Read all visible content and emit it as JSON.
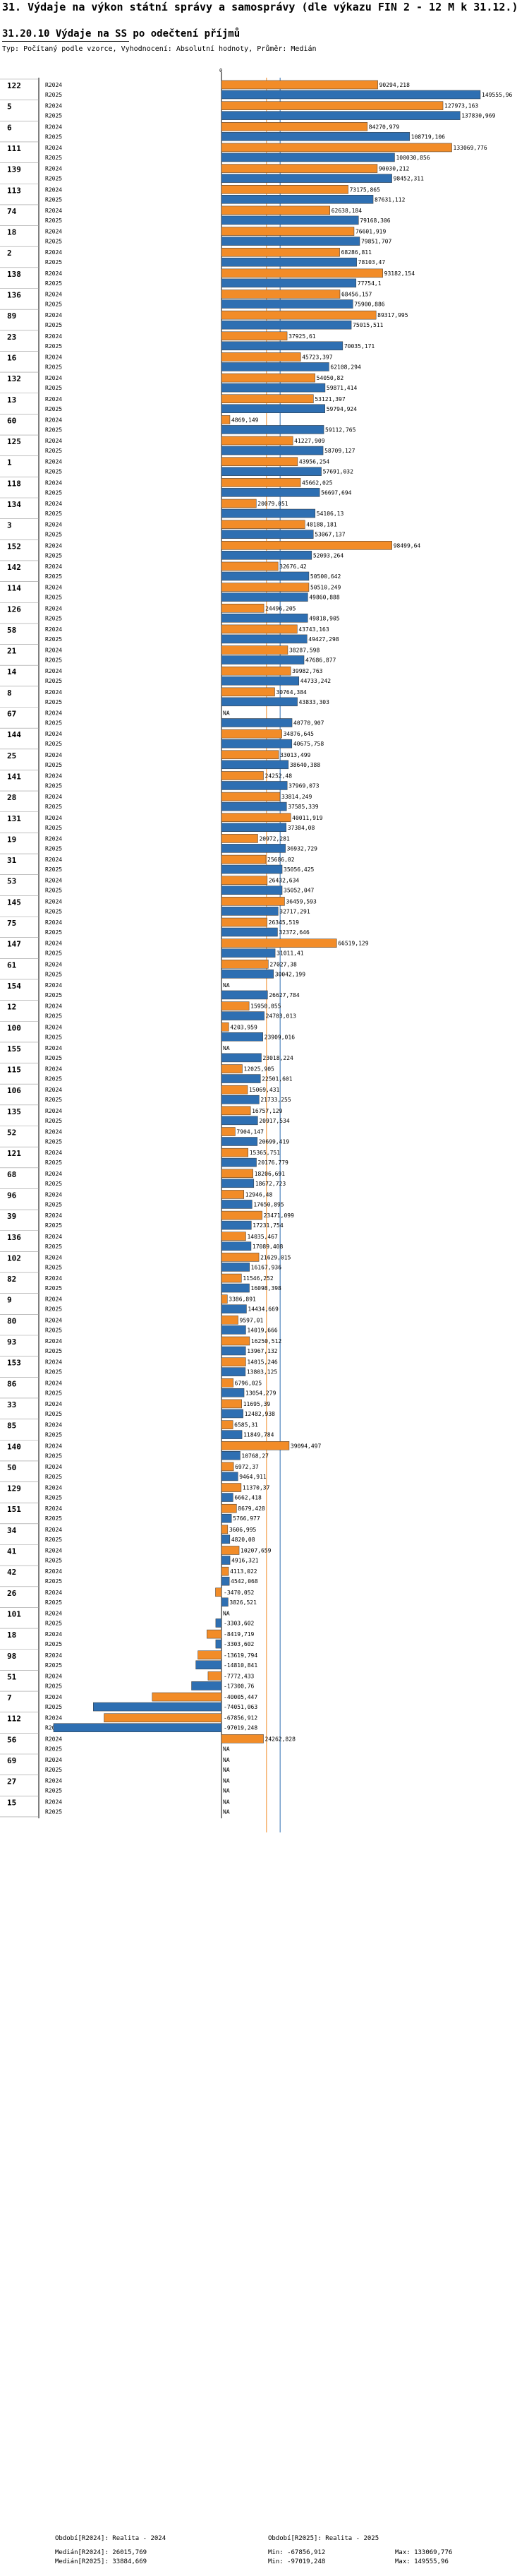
{
  "header": {
    "title": "31. Výdaje na výkon státní správy a samosprávy (dle výkazu FIN 2 - 12 M k 31.12.)",
    "subtitle": "31.20.10 Výdaje na SS po odečtení příjmů",
    "note": "Typ: Počítaný podle vzorce, Vyhodnocení: Absolutní hodnoty, Průměr: Medián"
  },
  "chart_data": {
    "type": "bar",
    "orientation": "horizontal",
    "series": [
      {
        "name": "R2024",
        "color": "#f28c28"
      },
      {
        "name": "R2025",
        "color": "#2e6fb2"
      }
    ],
    "xlim": [
      -110000,
      155000
    ],
    "median_lines": [
      {
        "name": "Medián[R2024]",
        "value": 26015.769,
        "color": "#f28c28"
      },
      {
        "name": "Medián[R2025]",
        "value": 33884.669,
        "color": "#2e6fb2"
      }
    ],
    "categories": [
      {
        "id": "122",
        "R2024": 90294.218,
        "R2024_label": "90294,218",
        "R2025": 149555.96,
        "R2025_label": "149555,96"
      },
      {
        "id": "5",
        "R2024": 127973.163,
        "R2024_label": "127973,163",
        "R2025": 137830.969,
        "R2025_label": "137830,969"
      },
      {
        "id": "6",
        "R2024": 84270.979,
        "R2024_label": "84270,979",
        "R2025": 108719.106,
        "R2025_label": "108719,106"
      },
      {
        "id": "111",
        "R2024": 133069.776,
        "R2024_label": "133069,776",
        "R2025": 100030.856,
        "R2025_label": "100030,856"
      },
      {
        "id": "139",
        "R2024": 90030.212,
        "R2024_label": "90030,212",
        "R2025": 98452.311,
        "R2025_label": "98452,311"
      },
      {
        "id": "113",
        "R2024": 73175.865,
        "R2024_label": "73175,865",
        "R2025": 87631.112,
        "R2025_label": "87631,112"
      },
      {
        "id": "74",
        "R2024": 62638.184,
        "R2024_label": "62638,184",
        "R2025": 79168.306,
        "R2025_label": "79168,306"
      },
      {
        "id": "18",
        "R2024": 76601.919,
        "R2024_label": "76601,919",
        "R2025": 79851.707,
        "R2025_label": "79851,707"
      },
      {
        "id": "2",
        "R2024": 68286.811,
        "R2024_label": "68286,811",
        "R2025": 78103.47,
        "R2025_label": "78103,47"
      },
      {
        "id": "138",
        "R2024": 93182.154,
        "R2024_label": "93182,154",
        "R2025": 77754.1,
        "R2025_label": "77754,1"
      },
      {
        "id": "136",
        "R2024": 68456.157,
        "R2024_label": "68456,157",
        "R2025": 75900.886,
        "R2025_label": "75900,886"
      },
      {
        "id": "89",
        "R2024": 89317.995,
        "R2024_label": "89317,995",
        "R2025": 75015.511,
        "R2025_label": "75015,511"
      },
      {
        "id": "23",
        "R2024": 37925.61,
        "R2024_label": "37925,61",
        "R2025": 70035.171,
        "R2025_label": "70035,171"
      },
      {
        "id": "16",
        "R2024": 45723.397,
        "R2024_label": "45723,397",
        "R2025": 62108.294,
        "R2025_label": "62108,294"
      },
      {
        "id": "132",
        "R2024": 54050.82,
        "R2024_label": "54050,82",
        "R2025": 59871.414,
        "R2025_label": "59871,414"
      },
      {
        "id": "13",
        "R2024": 53121.397,
        "R2024_label": "53121,397",
        "R2025": 59794.924,
        "R2025_label": "59794,924"
      },
      {
        "id": "60",
        "R2024": 4869.149,
        "R2024_label": "4869,149",
        "R2025": 59112.765,
        "R2025_label": "59112,765"
      },
      {
        "id": "125",
        "R2024": 41227.909,
        "R2024_label": "41227,909",
        "R2025": 58709.127,
        "R2025_label": "58709,127"
      },
      {
        "id": "1",
        "R2024": 43956.254,
        "R2024_label": "43956,254",
        "R2025": 57691.032,
        "R2025_label": "57691,032"
      },
      {
        "id": "118",
        "R2024": 45662.025,
        "R2024_label": "45662,025",
        "R2025": 56697.694,
        "R2025_label": "56697,694"
      },
      {
        "id": "134",
        "R2024": 20079.051,
        "R2024_label": "20079,051",
        "R2025": 54106.13,
        "R2025_label": "54106,13"
      },
      {
        "id": "3",
        "R2024": 48188.181,
        "R2024_label": "48188,181",
        "R2025": 53067.137,
        "R2025_label": "53067,137"
      },
      {
        "id": "152",
        "R2024": 98499.64,
        "R2024_label": "98499,64",
        "R2025": 52093.264,
        "R2025_label": "52093,264"
      },
      {
        "id": "142",
        "R2024": 32676.42,
        "R2024_label": "32676,42",
        "R2025": 50500.642,
        "R2025_label": "50500,642"
      },
      {
        "id": "114",
        "R2024": 50510.249,
        "R2024_label": "50510,249",
        "R2025": 49860.888,
        "R2025_label": "49860,888"
      },
      {
        "id": "126",
        "R2024": 24496.205,
        "R2024_label": "24496,205",
        "R2025": 49818.905,
        "R2025_label": "49818,905"
      },
      {
        "id": "58",
        "R2024": 43743.163,
        "R2024_label": "43743,163",
        "R2025": 49427.298,
        "R2025_label": "49427,298"
      },
      {
        "id": "21",
        "R2024": 38287.598,
        "R2024_label": "38287,598",
        "R2025": 47686.877,
        "R2025_label": "47686,877"
      },
      {
        "id": "14",
        "R2024": 39982.763,
        "R2024_label": "39982,763",
        "R2025": 44733.242,
        "R2025_label": "44733,242"
      },
      {
        "id": "8",
        "R2024": 30764.384,
        "R2024_label": "30764,384",
        "R2025": 43833.303,
        "R2025_label": "43833,303"
      },
      {
        "id": "67",
        "R2024": null,
        "R2024_label": "NA",
        "R2025": 40770.907,
        "R2025_label": "40770,907"
      },
      {
        "id": "144",
        "R2024": 34876.645,
        "R2024_label": "34876,645",
        "R2025": 40675.758,
        "R2025_label": "40675,758"
      },
      {
        "id": "25",
        "R2024": 33013.499,
        "R2024_label": "33013,499",
        "R2025": 38640.388,
        "R2025_label": "38640,388"
      },
      {
        "id": "141",
        "R2024": 24252.48,
        "R2024_label": "24252,48",
        "R2025": 37969.073,
        "R2025_label": "37969,073"
      },
      {
        "id": "28",
        "R2024": 33814.249,
        "R2024_label": "33814,249",
        "R2025": 37585.339,
        "R2025_label": "37585,339"
      },
      {
        "id": "131",
        "R2024": 40011.919,
        "R2024_label": "40011,919",
        "R2025": 37384.08,
        "R2025_label": "37384,08"
      },
      {
        "id": "19",
        "R2024": 20972.281,
        "R2024_label": "20972,281",
        "R2025": 36932.729,
        "R2025_label": "36932,729"
      },
      {
        "id": "31",
        "R2024": 25686.02,
        "R2024_label": "25686,02",
        "R2025": 35056.425,
        "R2025_label": "35056,425"
      },
      {
        "id": "53",
        "R2024": 26432.634,
        "R2024_label": "26432,634",
        "R2025": 35052.047,
        "R2025_label": "35052,047"
      },
      {
        "id": "145",
        "R2024": 36459.593,
        "R2024_label": "36459,593",
        "R2025": 32717.291,
        "R2025_label": "32717,291"
      },
      {
        "id": "75",
        "R2024": 26345.519,
        "R2024_label": "26345,519",
        "R2025": 32372.646,
        "R2025_label": "32372,646"
      },
      {
        "id": "147",
        "R2024": 66519.129,
        "R2024_label": "66519,129",
        "R2025": 31011.41,
        "R2025_label": "31011,41"
      },
      {
        "id": "61",
        "R2024": 27027.38,
        "R2024_label": "27027,38",
        "R2025": 30042.199,
        "R2025_label": "30042,199"
      },
      {
        "id": "154",
        "R2024": null,
        "R2024_label": "NA",
        "R2025": 26627.784,
        "R2025_label": "26627,784"
      },
      {
        "id": "12",
        "R2024": 15950.055,
        "R2024_label": "15950,055",
        "R2025": 24703.013,
        "R2025_label": "24703,013"
      },
      {
        "id": "100",
        "R2024": 4203.959,
        "R2024_label": "4203,959",
        "R2025": 23909.016,
        "R2025_label": "23909,016"
      },
      {
        "id": "155",
        "R2024": null,
        "R2024_label": "NA",
        "R2025": 23018.224,
        "R2025_label": "23018,224"
      },
      {
        "id": "115",
        "R2024": 12025.905,
        "R2024_label": "12025,905",
        "R2025": 22501.601,
        "R2025_label": "22501,601"
      },
      {
        "id": "106",
        "R2024": 15069.431,
        "R2024_label": "15069,431",
        "R2025": 21733.255,
        "R2025_label": "21733,255"
      },
      {
        "id": "135",
        "R2024": 16757.129,
        "R2024_label": "16757,129",
        "R2025": 20917.534,
        "R2025_label": "20917,534"
      },
      {
        "id": "52",
        "R2024": 7904.147,
        "R2024_label": "7904,147",
        "R2025": 20699.419,
        "R2025_label": "20699,419"
      },
      {
        "id": "121",
        "R2024": 15365.751,
        "R2024_label": "15365,751",
        "R2025": 20176.779,
        "R2025_label": "20176,779"
      },
      {
        "id": "68",
        "R2024": 18206.691,
        "R2024_label": "18206,691",
        "R2025": 18672.723,
        "R2025_label": "18672,723"
      },
      {
        "id": "96",
        "R2024": 12946.48,
        "R2024_label": "12946,48",
        "R2025": 17650.895,
        "R2025_label": "17650,895"
      },
      {
        "id": "39",
        "R2024": 23471.099,
        "R2024_label": "23471,099",
        "R2025": 17231.754,
        "R2025_label": "17231,754"
      },
      {
        "id": "136",
        "R2024": 14035.467,
        "R2024_label": "14035,467",
        "R2025": 17089.408,
        "R2025_label": "17089,408"
      },
      {
        "id": "102",
        "R2024": 21629.015,
        "R2024_label": "21629,015",
        "R2025": 16167.936,
        "R2025_label": "16167,936"
      },
      {
        "id": "82",
        "R2024": 11546.252,
        "R2024_label": "11546,252",
        "R2025": 16098.398,
        "R2025_label": "16098,398"
      },
      {
        "id": "9",
        "R2024": 3386.891,
        "R2024_label": "3386,891",
        "R2025": 14434.669,
        "R2025_label": "14434,669"
      },
      {
        "id": "80",
        "R2024": 9597.01,
        "R2024_label": "9597,01",
        "R2025": 14019.666,
        "R2025_label": "14019,666"
      },
      {
        "id": "93",
        "R2024": 16250.512,
        "R2024_label": "16250,512",
        "R2025": 13967.132,
        "R2025_label": "13967,132"
      },
      {
        "id": "153",
        "R2024": 14015.246,
        "R2024_label": "14015,246",
        "R2025": 13803.125,
        "R2025_label": "13803,125"
      },
      {
        "id": "86",
        "R2024": 6796.025,
        "R2024_label": "6796,025",
        "R2025": 13054.279,
        "R2025_label": "13054,279"
      },
      {
        "id": "33",
        "R2024": 11695.39,
        "R2024_label": "11695,39",
        "R2025": 12482.938,
        "R2025_label": "12482,938"
      },
      {
        "id": "85",
        "R2024": 6585.31,
        "R2024_label": "6585,31",
        "R2025": 11849.784,
        "R2025_label": "11849,784"
      },
      {
        "id": "140",
        "R2024": 39094.497,
        "R2024_label": "39094,497",
        "R2025": 10768.27,
        "R2025_label": "10768,27"
      },
      {
        "id": "50",
        "R2024": 6972.37,
        "R2024_label": "6972,37",
        "R2025": 9464.911,
        "R2025_label": "9464,911"
      },
      {
        "id": "129",
        "R2024": 11370.37,
        "R2024_label": "11370,37",
        "R2025": 6662.418,
        "R2025_label": "6662,418"
      },
      {
        "id": "151",
        "R2024": 8679.428,
        "R2024_label": "8679,428",
        "R2025": 5766.977,
        "R2025_label": "5766,977"
      },
      {
        "id": "34",
        "R2024": 3606.995,
        "R2024_label": "3606,995",
        "R2025": 4820.08,
        "R2025_label": "4820,08"
      },
      {
        "id": "41",
        "R2024": 10207.659,
        "R2024_label": "10207,659",
        "R2025": 4916.321,
        "R2025_label": "4916,321"
      },
      {
        "id": "42",
        "R2024": 4113.022,
        "R2024_label": "4113,022",
        "R2025": 4542.068,
        "R2025_label": "4542,068"
      },
      {
        "id": "26",
        "R2024": -3470.052,
        "R2024_label": "-3470,052",
        "R2025": 3826.521,
        "R2025_label": "3826,521"
      },
      {
        "id": "101",
        "R2024": null,
        "R2024_label": "NA",
        "R2025": -3303.602,
        "R2025_label": "-3303,602"
      },
      {
        "id": "18",
        "R2024": -8419.719,
        "R2024_label": "-8419,719",
        "R2025": -3303.602,
        "R2025_label": "-3303,602"
      },
      {
        "id": "98",
        "R2024": -13619.794,
        "R2024_label": "-13619,794",
        "R2025": -14810.841,
        "R2025_label": "-14810,841"
      },
      {
        "id": "51",
        "R2024": -7772.433,
        "R2024_label": "-7772,433",
        "R2025": -17300.76,
        "R2025_label": "-17300,76"
      },
      {
        "id": "7",
        "R2024": -40005.447,
        "R2024_label": "-40005,447",
        "R2025": -74051.063,
        "R2025_label": "-74051,063"
      },
      {
        "id": "112",
        "R2024": -67856.912,
        "R2024_label": "-67856,912",
        "R2025": -97019.248,
        "R2025_label": "-97019,248"
      },
      {
        "id": "56",
        "R2024": 24262.828,
        "R2024_label": "24262,828",
        "R2025": null,
        "R2025_label": "NA"
      },
      {
        "id": "69",
        "R2024": null,
        "R2024_label": "NA",
        "R2025": null,
        "R2025_label": "NA"
      },
      {
        "id": "27",
        "R2024": null,
        "R2024_label": "NA",
        "R2025": null,
        "R2025_label": "NA"
      },
      {
        "id": "15",
        "R2024": null,
        "R2024_label": "NA",
        "R2025": null,
        "R2025_label": "NA"
      }
    ]
  },
  "footer": {
    "period_2024": "Období[R2024]: Realita - 2024",
    "period_2025": "Období[R2025]: Realita - 2025",
    "median_2024": "Medián[R2024]: 26015,769",
    "median_2025": "Medián[R2025]: 33884,669",
    "min_2024": "Min: -67856,912",
    "min_2025": "Min: -97019,248",
    "max_2024": "Max: 133069,776",
    "max_2025": "Max: 149555,96"
  }
}
